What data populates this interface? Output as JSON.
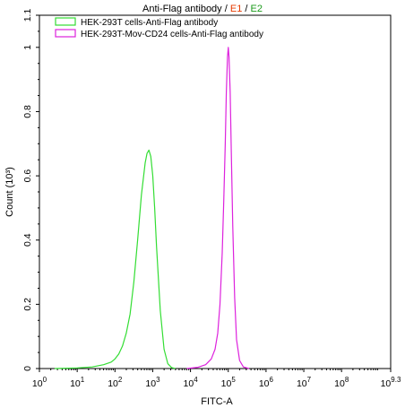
{
  "chart_data": {
    "type": "line",
    "title_parts": [
      {
        "text": "Anti-Flag antibody / ",
        "color": "#000000"
      },
      {
        "text": "E1",
        "color": "#e53b00"
      },
      {
        "text": " / ",
        "color": "#000000"
      },
      {
        "text": "E2",
        "color": "#1a9a1a"
      }
    ],
    "xlabel": "FITC-A",
    "ylabel": "Count (10³)",
    "xscale": "log",
    "xlim": [
      0,
      9.3
    ],
    "ylim": [
      0,
      1.1
    ],
    "x_ticks": [
      {
        "base": "10",
        "exp": "0",
        "pos": 0
      },
      {
        "base": "10",
        "exp": "1",
        "pos": 1
      },
      {
        "base": "10",
        "exp": "2",
        "pos": 2
      },
      {
        "base": "10",
        "exp": "3",
        "pos": 3
      },
      {
        "base": "10",
        "exp": "4",
        "pos": 4
      },
      {
        "base": "10",
        "exp": "5",
        "pos": 5
      },
      {
        "base": "10",
        "exp": "6",
        "pos": 6
      },
      {
        "base": "10",
        "exp": "7",
        "pos": 7
      },
      {
        "base": "10",
        "exp": "8",
        "pos": 8
      },
      {
        "base": "10",
        "exp": "9.3",
        "pos": 9.3
      }
    ],
    "y_ticks": [
      {
        "label": "0",
        "v": 0
      },
      {
        "label": "0.2",
        "v": 0.2
      },
      {
        "label": "0.4",
        "v": 0.4
      },
      {
        "label": "0.6",
        "v": 0.6
      },
      {
        "label": "0.8",
        "v": 0.8
      },
      {
        "label": "1",
        "v": 1.0
      },
      {
        "label": "1.1",
        "v": 1.1
      }
    ],
    "legend_position": "top-left",
    "series": [
      {
        "name": "HEK-293T cells-Anti-Flag antibody",
        "color": "#33dd33",
        "x_log": [
          0.4,
          1.0,
          1.4,
          1.7,
          1.9,
          2.0,
          2.1,
          2.2,
          2.3,
          2.4,
          2.5,
          2.6,
          2.7,
          2.8,
          2.85,
          2.9,
          2.95,
          3.0,
          3.05,
          3.1,
          3.2,
          3.3,
          3.4,
          3.5,
          3.6
        ],
        "y": [
          0.0,
          0.002,
          0.005,
          0.012,
          0.02,
          0.03,
          0.045,
          0.07,
          0.11,
          0.17,
          0.27,
          0.4,
          0.54,
          0.64,
          0.67,
          0.68,
          0.66,
          0.6,
          0.5,
          0.38,
          0.18,
          0.06,
          0.015,
          0.003,
          0.0
        ]
      },
      {
        "name": "HEK-293T-Mov-CD24 cells-Anti-Flag antibody",
        "color": "#dd22dd",
        "x_log": [
          3.9,
          4.2,
          4.4,
          4.55,
          4.65,
          4.72,
          4.78,
          4.84,
          4.88,
          4.92,
          4.95,
          4.98,
          5.0,
          5.02,
          5.05,
          5.08,
          5.12,
          5.17,
          5.22,
          5.3,
          5.4,
          5.55
        ],
        "y": [
          0.0,
          0.004,
          0.012,
          0.03,
          0.06,
          0.11,
          0.2,
          0.36,
          0.52,
          0.7,
          0.86,
          0.97,
          1.0,
          0.97,
          0.86,
          0.68,
          0.44,
          0.22,
          0.09,
          0.025,
          0.005,
          0.0
        ]
      }
    ]
  }
}
